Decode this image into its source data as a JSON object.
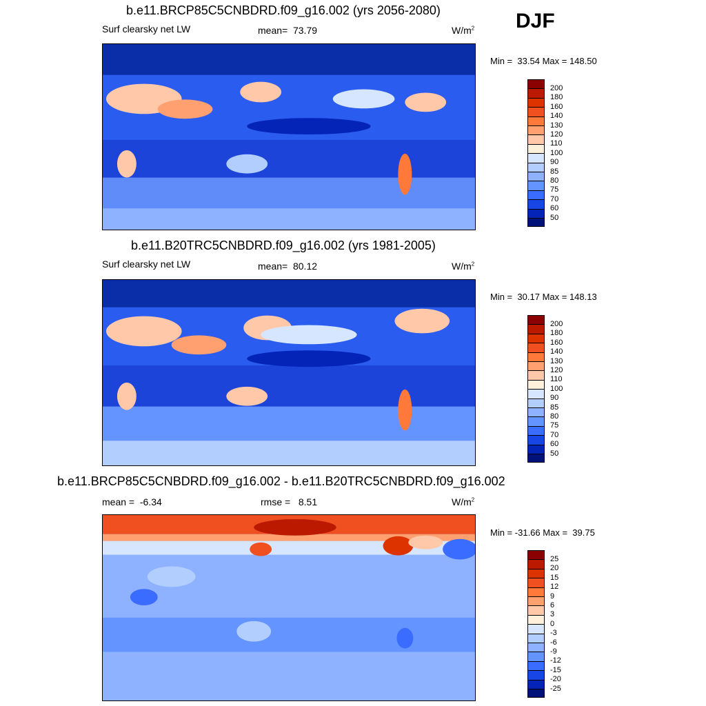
{
  "season": "DJF",
  "panels": [
    {
      "title": "b.e11.BRCP85C5CNBDRD.f09_g16.002 (yrs 2056-2080)",
      "variable": "Surf clearsky net LW",
      "mean_label": "mean=",
      "mean_value": "73.79",
      "units": "W/m",
      "units_sup": "2",
      "min_label": "Min =",
      "min_value": "33.54",
      "max_label": "Max =",
      "max_value": "148.50",
      "scheme": "abs"
    },
    {
      "title": "b.e11.B20TRC5CNBDRD.f09_g16.002 (yrs 1981-2005)",
      "variable": "Surf clearsky net LW",
      "mean_label": "mean=",
      "mean_value": "80.12",
      "units": "W/m",
      "units_sup": "2",
      "min_label": "Min =",
      "min_value": "30.17",
      "max_label": "Max =",
      "max_value": "148.13",
      "scheme": "abs"
    },
    {
      "title": "b.e11.BRCP85C5CNBDRD.f09_g16.002 - b.e11.B20TRC5CNBDRD.f09_g16.002",
      "mean_label": "mean =",
      "mean_value": "-6.34",
      "rmse_label": "rmse =",
      "rmse_value": "8.51",
      "units": "W/m",
      "units_sup": "2",
      "min_label": "Min =",
      "min_value": "-31.66",
      "max_label": "Max =",
      "max_value": "39.75",
      "scheme": "diff"
    }
  ],
  "colorbars": {
    "abs": {
      "labels": [
        "200",
        "180",
        "160",
        "140",
        "130",
        "120",
        "110",
        "100",
        "90",
        "85",
        "80",
        "75",
        "70",
        "60",
        "50"
      ],
      "colors": [
        "#8b0000",
        "#bb1a00",
        "#dd3300",
        "#f05020",
        "#ff7a3a",
        "#ffa070",
        "#ffc8a8",
        "#fff0dc",
        "#d6e6ff",
        "#b2ceff",
        "#8eb2ff",
        "#6494ff",
        "#3a6cff",
        "#1846e6",
        "#0424b8",
        "#00127a"
      ]
    },
    "diff": {
      "labels": [
        "25",
        "20",
        "15",
        "12",
        "9",
        "6",
        "3",
        "0",
        "-3",
        "-6",
        "-9",
        "-12",
        "-15",
        "-20",
        "-25"
      ],
      "colors": [
        "#8b0000",
        "#bb1a00",
        "#dd3300",
        "#f05020",
        "#ff7a3a",
        "#ffa070",
        "#ffc8a8",
        "#fff0dc",
        "#d6e6ff",
        "#b2ceff",
        "#8eb2ff",
        "#6494ff",
        "#3a6cff",
        "#1846e6",
        "#0424b8",
        "#00127a"
      ]
    }
  }
}
